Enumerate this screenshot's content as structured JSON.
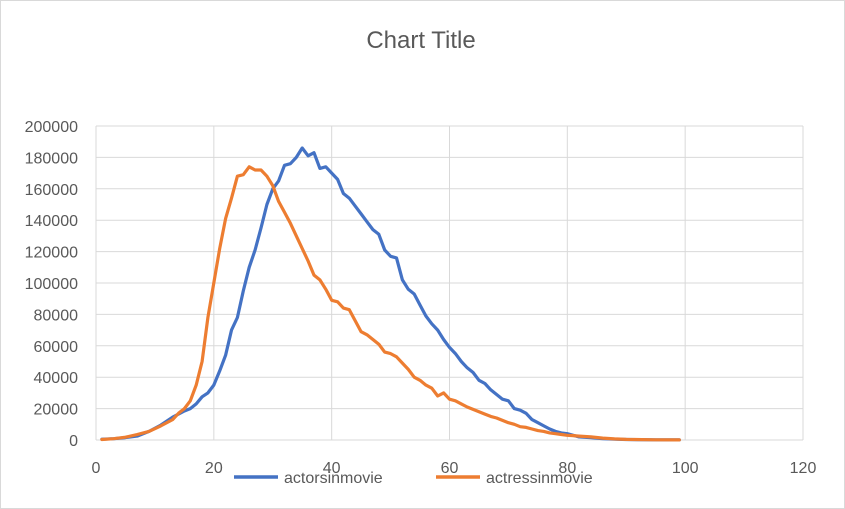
{
  "chart_data": {
    "type": "line",
    "title": "Chart Title",
    "xlabel": "",
    "ylabel": "",
    "xlim": [
      0,
      120
    ],
    "ylim": [
      0,
      200000
    ],
    "x_ticks": [
      "0",
      "20",
      "40",
      "60",
      "80",
      "100",
      "120"
    ],
    "y_ticks": [
      "0",
      "20000",
      "40000",
      "60000",
      "80000",
      "100000",
      "120000",
      "140000",
      "160000",
      "180000",
      "200000"
    ],
    "grid": true,
    "legend_position": "bottom",
    "series": [
      {
        "name": "actorsinmovie",
        "color": "#4472C4",
        "points": [
          [
            1,
            500
          ],
          [
            3,
            800
          ],
          [
            5,
            1500
          ],
          [
            7,
            2500
          ],
          [
            9,
            5500
          ],
          [
            11,
            9500
          ],
          [
            13,
            14500
          ],
          [
            15,
            18500
          ],
          [
            16,
            20000
          ],
          [
            17,
            23000
          ],
          [
            18,
            27500
          ],
          [
            19,
            30000
          ],
          [
            20,
            35000
          ],
          [
            21,
            44000
          ],
          [
            22,
            54000
          ],
          [
            23,
            70000
          ],
          [
            24,
            78000
          ],
          [
            25,
            95000
          ],
          [
            26,
            110000
          ],
          [
            27,
            121000
          ],
          [
            28,
            135000
          ],
          [
            29,
            150000
          ],
          [
            30,
            160000
          ],
          [
            31,
            165000
          ],
          [
            32,
            175000
          ],
          [
            33,
            176000
          ],
          [
            34,
            180000
          ],
          [
            35,
            186000
          ],
          [
            36,
            181000
          ],
          [
            37,
            183000
          ],
          [
            38,
            173000
          ],
          [
            39,
            174000
          ],
          [
            40,
            170000
          ],
          [
            41,
            166000
          ],
          [
            42,
            157000
          ],
          [
            43,
            154000
          ],
          [
            44,
            149000
          ],
          [
            45,
            144000
          ],
          [
            46,
            139000
          ],
          [
            47,
            134000
          ],
          [
            48,
            131000
          ],
          [
            49,
            121000
          ],
          [
            50,
            117000
          ],
          [
            51,
            116000
          ],
          [
            52,
            102000
          ],
          [
            53,
            96000
          ],
          [
            54,
            93000
          ],
          [
            55,
            86000
          ],
          [
            56,
            79000
          ],
          [
            57,
            74000
          ],
          [
            58,
            70000
          ],
          [
            59,
            64000
          ],
          [
            60,
            59000
          ],
          [
            61,
            55000
          ],
          [
            62,
            50000
          ],
          [
            63,
            46000
          ],
          [
            64,
            43000
          ],
          [
            65,
            38000
          ],
          [
            66,
            36000
          ],
          [
            67,
            32000
          ],
          [
            68,
            29000
          ],
          [
            69,
            26000
          ],
          [
            70,
            25000
          ],
          [
            71,
            20000
          ],
          [
            72,
            19000
          ],
          [
            73,
            17000
          ],
          [
            74,
            13000
          ],
          [
            75,
            11000
          ],
          [
            76,
            9000
          ],
          [
            77,
            7000
          ],
          [
            78,
            5500
          ],
          [
            79,
            4500
          ],
          [
            80,
            4000
          ],
          [
            81,
            3000
          ],
          [
            82,
            2000
          ],
          [
            84,
            1500
          ],
          [
            86,
            800
          ],
          [
            88,
            500
          ],
          [
            90,
            300
          ],
          [
            95,
            100
          ],
          [
            99,
            50
          ]
        ]
      },
      {
        "name": "actressinmovie",
        "color": "#ED7D31",
        "points": [
          [
            1,
            300
          ],
          [
            3,
            800
          ],
          [
            5,
            1800
          ],
          [
            7,
            3500
          ],
          [
            9,
            5500
          ],
          [
            11,
            9000
          ],
          [
            13,
            13000
          ],
          [
            14,
            17000
          ],
          [
            15,
            20000
          ],
          [
            16,
            25000
          ],
          [
            17,
            35000
          ],
          [
            18,
            50000
          ],
          [
            19,
            78000
          ],
          [
            20,
            100000
          ],
          [
            21,
            122000
          ],
          [
            22,
            141000
          ],
          [
            23,
            154000
          ],
          [
            24,
            168000
          ],
          [
            25,
            169000
          ],
          [
            26,
            174000
          ],
          [
            27,
            172000
          ],
          [
            28,
            172000
          ],
          [
            29,
            168000
          ],
          [
            30,
            162000
          ],
          [
            31,
            152000
          ],
          [
            32,
            145000
          ],
          [
            33,
            138000
          ],
          [
            34,
            130000
          ],
          [
            35,
            122000
          ],
          [
            36,
            114000
          ],
          [
            37,
            105000
          ],
          [
            38,
            102000
          ],
          [
            39,
            96000
          ],
          [
            40,
            89000
          ],
          [
            41,
            88000
          ],
          [
            42,
            84000
          ],
          [
            43,
            83000
          ],
          [
            44,
            76000
          ],
          [
            45,
            69000
          ],
          [
            46,
            67000
          ],
          [
            47,
            64000
          ],
          [
            48,
            61000
          ],
          [
            49,
            56000
          ],
          [
            50,
            55000
          ],
          [
            51,
            53000
          ],
          [
            52,
            49000
          ],
          [
            53,
            45000
          ],
          [
            54,
            40000
          ],
          [
            55,
            38000
          ],
          [
            56,
            35000
          ],
          [
            57,
            33000
          ],
          [
            58,
            28000
          ],
          [
            59,
            30000
          ],
          [
            60,
            26000
          ],
          [
            61,
            25000
          ],
          [
            62,
            23000
          ],
          [
            63,
            21000
          ],
          [
            64,
            19500
          ],
          [
            65,
            18000
          ],
          [
            66,
            16500
          ],
          [
            67,
            15000
          ],
          [
            68,
            14000
          ],
          [
            69,
            12500
          ],
          [
            70,
            11000
          ],
          [
            71,
            10000
          ],
          [
            72,
            8500
          ],
          [
            73,
            8000
          ],
          [
            74,
            7000
          ],
          [
            75,
            6000
          ],
          [
            76,
            5500
          ],
          [
            77,
            4500
          ],
          [
            78,
            4000
          ],
          [
            79,
            3500
          ],
          [
            80,
            3000
          ],
          [
            81,
            2800
          ],
          [
            82,
            2500
          ],
          [
            84,
            2000
          ],
          [
            86,
            1200
          ],
          [
            88,
            700
          ],
          [
            90,
            400
          ],
          [
            95,
            150
          ],
          [
            99,
            50
          ]
        ]
      }
    ]
  }
}
